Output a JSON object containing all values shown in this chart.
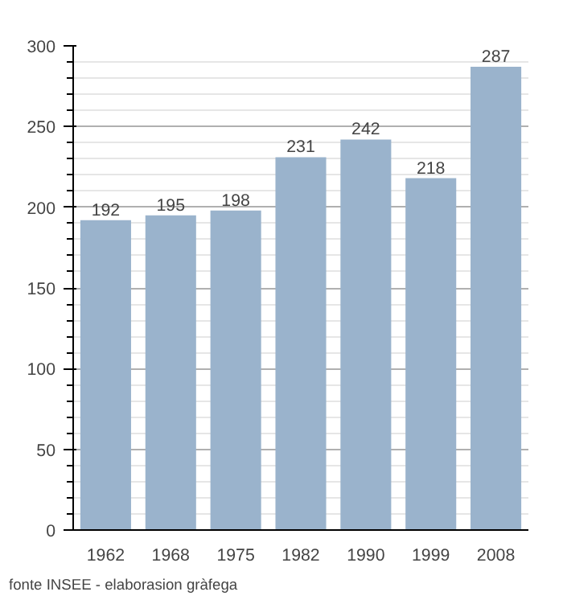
{
  "chart_data": {
    "type": "bar",
    "categories": [
      "1962",
      "1968",
      "1975",
      "1982",
      "1990",
      "1999",
      "2008"
    ],
    "values": [
      192,
      195,
      198,
      231,
      242,
      218,
      287
    ],
    "color": "#9ab3cc",
    "ylim": [
      0,
      300
    ],
    "yticks": [
      0,
      50,
      100,
      150,
      200,
      250,
      300
    ],
    "grid": "y",
    "data_labels": true,
    "annotations": [
      "fonte INSEE - elaborasion gràfega"
    ]
  }
}
